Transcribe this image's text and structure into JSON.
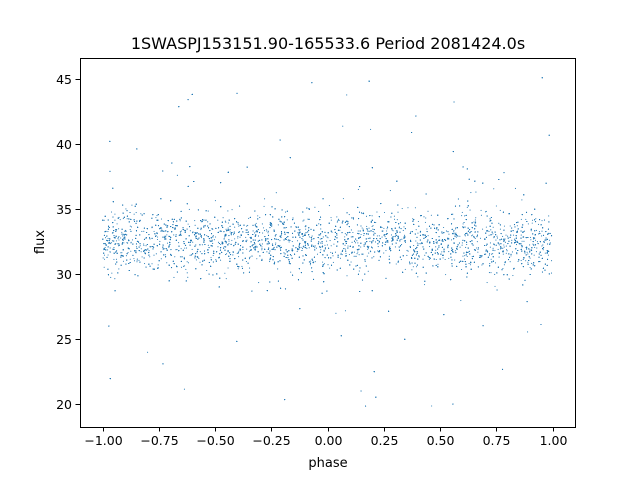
{
  "chart_data": {
    "type": "scatter",
    "title": "1SWASPJ153151.90-165533.6 Period 2081424.0s",
    "xlabel": "phase",
    "ylabel": "flux",
    "xlim": [
      -1.1,
      1.1
    ],
    "ylim": [
      18.2,
      46.6
    ],
    "xticks": [
      -1.0,
      -0.75,
      -0.5,
      -0.25,
      0.0,
      0.25,
      0.5,
      0.75,
      1.0
    ],
    "xtick_labels": [
      "−1.00",
      "−0.75",
      "−0.50",
      "−0.25",
      "0.00",
      "0.25",
      "0.50",
      "0.75",
      "1.00"
    ],
    "yticks": [
      20,
      25,
      30,
      35,
      40,
      45
    ],
    "ytick_labels": [
      "20",
      "25",
      "30",
      "35",
      "40",
      "45"
    ],
    "grid": false,
    "legend": "none",
    "marker_color": "#1f77b4",
    "series": [
      {
        "x_range": [
          -1.0,
          1.0
        ],
        "core_flux_range": [
          28.5,
          37.5
        ],
        "median_flux": 32.5,
        "envelope_range": [
          19.5,
          45.5
        ],
        "outlier_flux_range": [
          19.5,
          45.5
        ]
      }
    ]
  }
}
